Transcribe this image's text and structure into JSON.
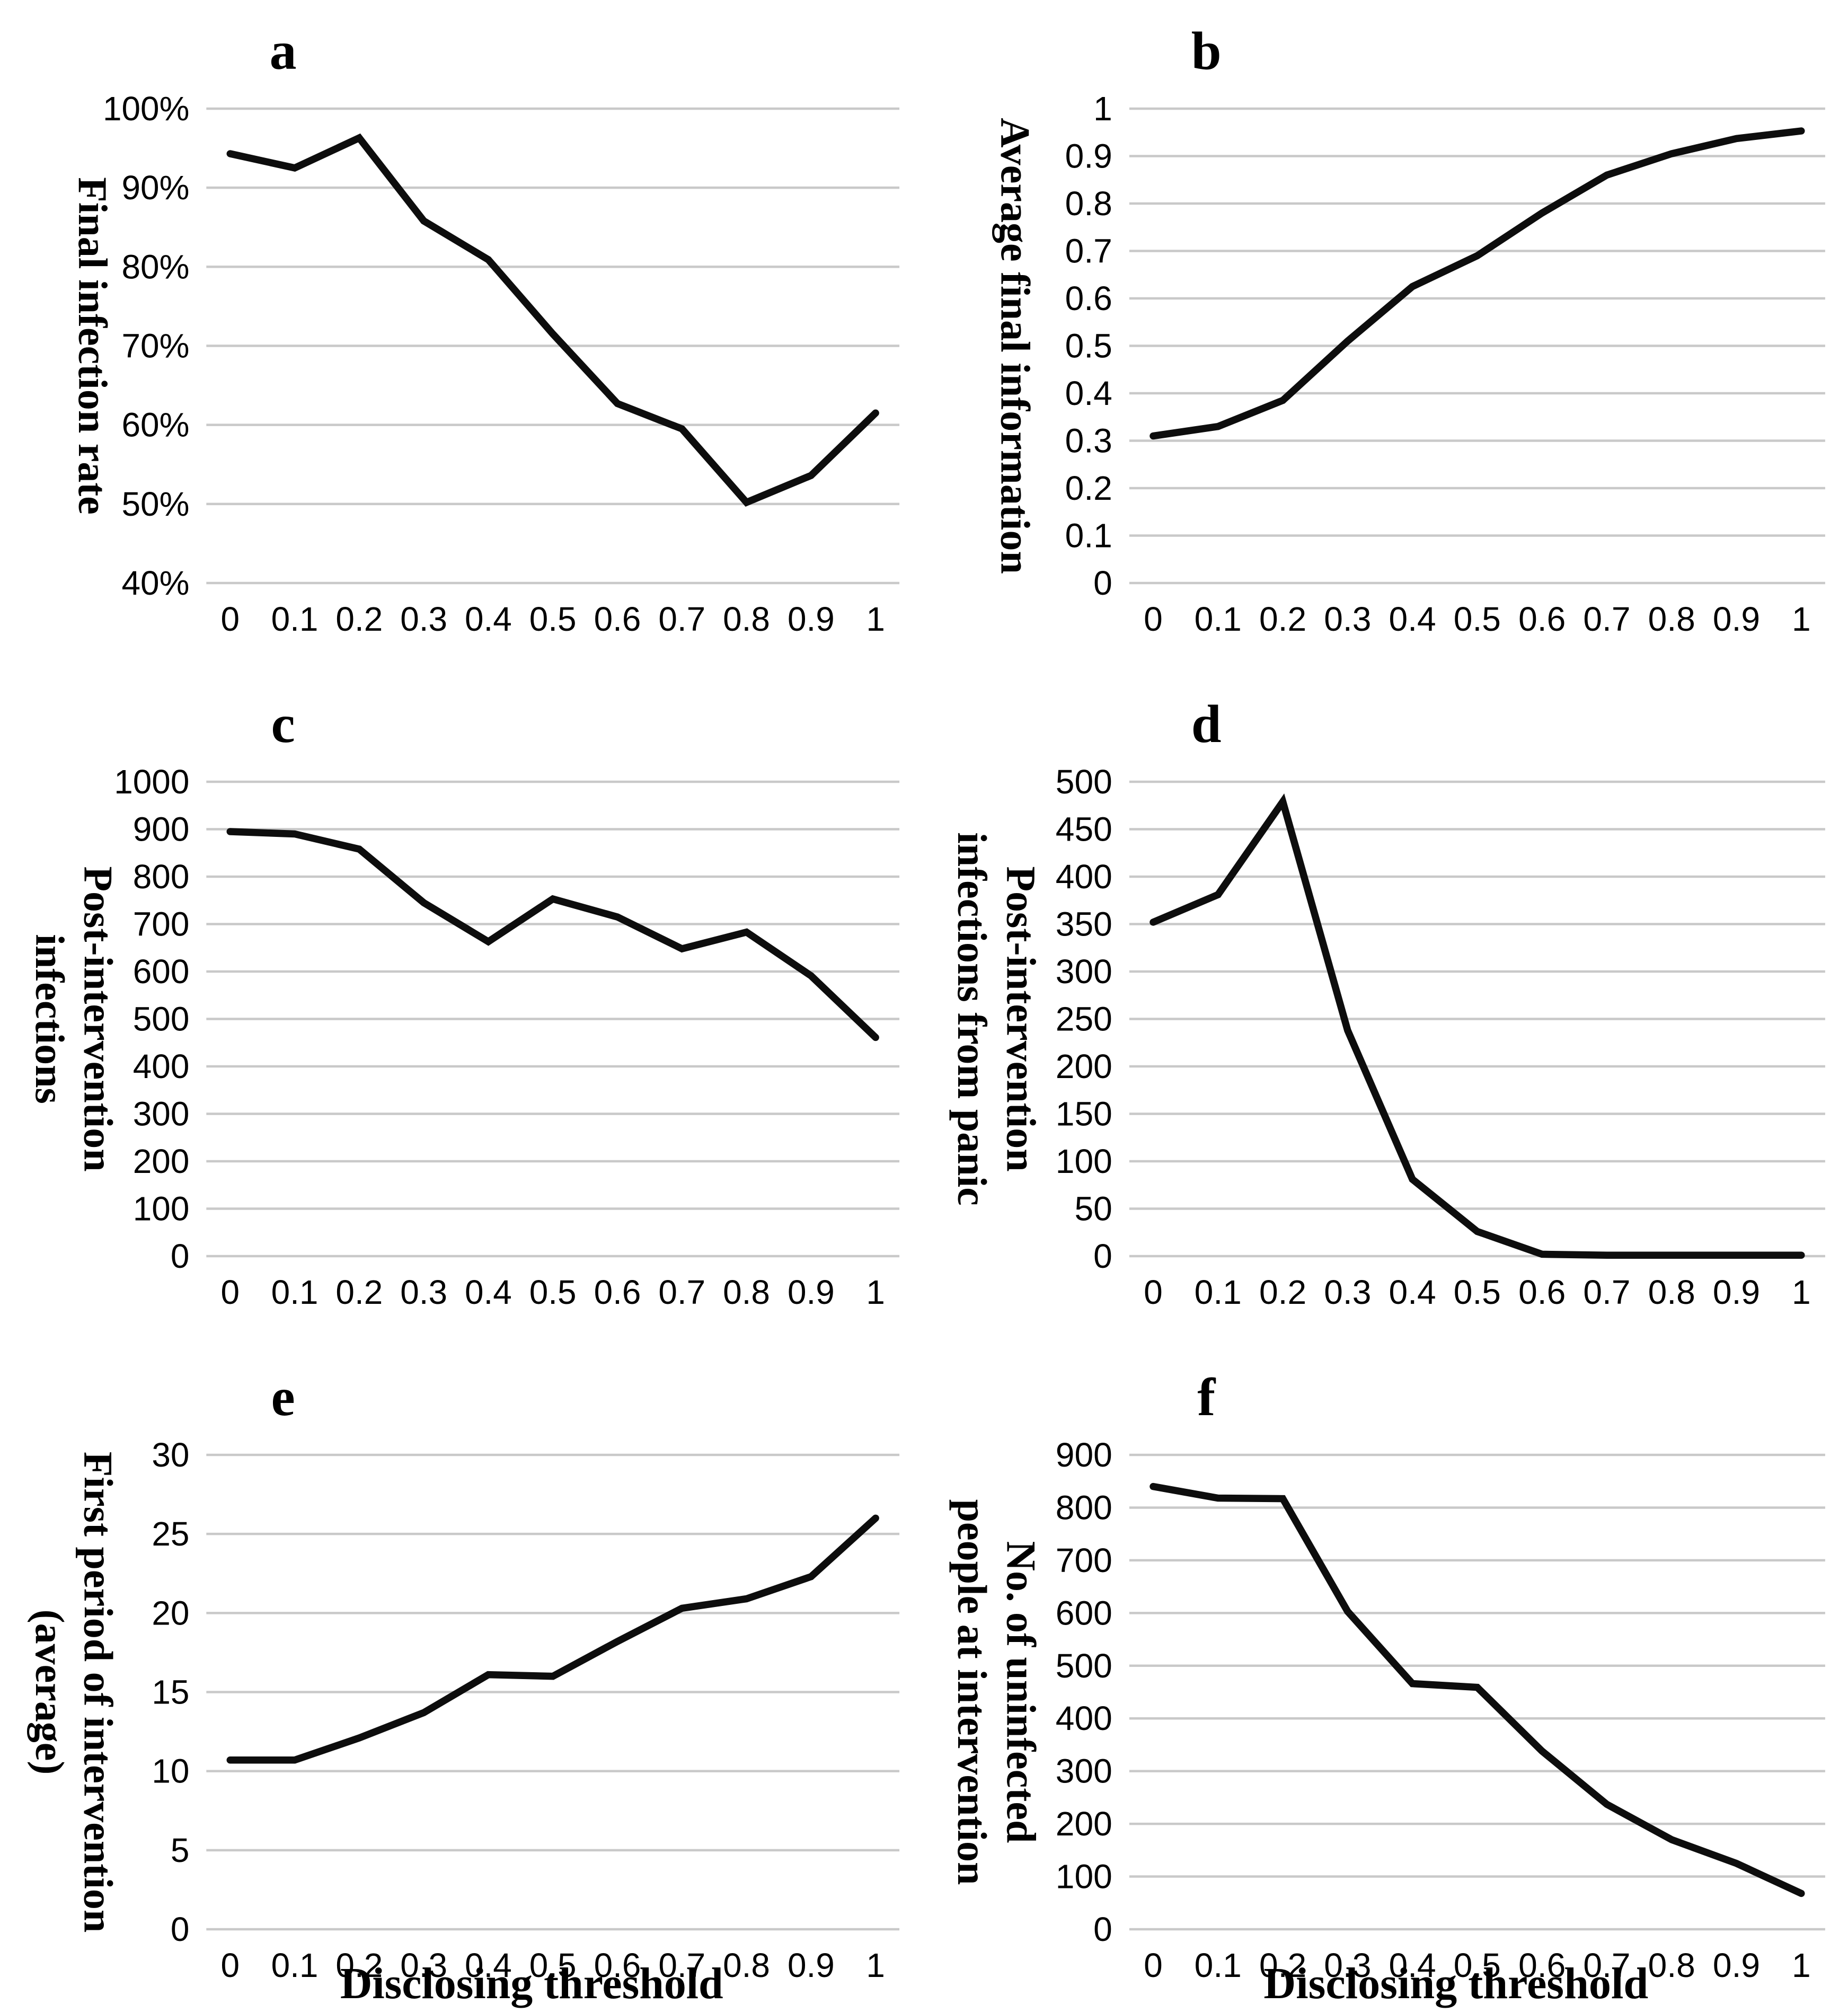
{
  "figure": {
    "x_axis_label": "Disclosing threshold",
    "line_color": "#0d0d0d",
    "gridline_color": "#c9c9c9",
    "background_color": "#ffffff"
  },
  "chart_data": [
    {
      "panel_letter": "a",
      "type": "line",
      "ylabel_lines": [
        "Final infection rate"
      ],
      "y_min": 40,
      "y_max": 100,
      "y_tick_values": [
        100,
        90,
        80,
        70,
        60,
        50,
        40
      ],
      "y_tick_labels": [
        "100%",
        "90%",
        "80%",
        "70%",
        "60%",
        "50%",
        "40%"
      ],
      "x": [
        "0",
        "0.1",
        "0.2",
        "0.3",
        "0.4",
        "0.5",
        "0.6",
        "0.7",
        "0.8",
        "0.9",
        "1"
      ],
      "values": [
        94.3,
        92.5,
        96.3,
        85.8,
        80.9,
        71.5,
        62.7,
        59.5,
        50.2,
        53.6,
        61.5
      ],
      "show_x_title": false
    },
    {
      "panel_letter": "b",
      "type": "line",
      "ylabel_lines": [
        "Average final information"
      ],
      "y_min": 0,
      "y_max": 1,
      "y_tick_values": [
        1,
        0.9,
        0.8,
        0.7,
        0.6,
        0.5,
        0.4,
        0.3,
        0.2,
        0.1,
        0
      ],
      "y_tick_labels": [
        "1",
        "0.9",
        "0.8",
        "0.7",
        "0.6",
        "0.5",
        "0.4",
        "0.3",
        "0.2",
        "0.1",
        "0"
      ],
      "x": [
        "0",
        "0.1",
        "0.2",
        "0.3",
        "0.4",
        "0.5",
        "0.6",
        "0.7",
        "0.8",
        "0.9",
        "1"
      ],
      "values": [
        0.31,
        0.33,
        0.385,
        0.51,
        0.625,
        0.69,
        0.78,
        0.86,
        0.905,
        0.937,
        0.953
      ],
      "show_x_title": false
    },
    {
      "panel_letter": "c",
      "type": "line",
      "ylabel_lines": [
        "Post-intervention",
        "infections"
      ],
      "y_min": 0,
      "y_max": 1000,
      "y_tick_values": [
        1000,
        900,
        800,
        700,
        600,
        500,
        400,
        300,
        200,
        100,
        0
      ],
      "y_tick_labels": [
        "1000",
        "900",
        "800",
        "700",
        "600",
        "500",
        "400",
        "300",
        "200",
        "100",
        "0"
      ],
      "x": [
        "0",
        "0.1",
        "0.2",
        "0.3",
        "0.4",
        "0.5",
        "0.6",
        "0.7",
        "0.8",
        "0.9",
        "1"
      ],
      "values": [
        895,
        890,
        858,
        745,
        663,
        753,
        715,
        648,
        683,
        591,
        461
      ],
      "show_x_title": false
    },
    {
      "panel_letter": "d",
      "type": "line",
      "ylabel_lines": [
        "Post-intervention",
        "infections from panic"
      ],
      "y_min": 0,
      "y_max": 500,
      "y_tick_values": [
        500,
        450,
        400,
        350,
        300,
        250,
        200,
        150,
        100,
        50,
        0
      ],
      "y_tick_labels": [
        "500",
        "450",
        "400",
        "350",
        "300",
        "250",
        "200",
        "150",
        "100",
        "50",
        "0"
      ],
      "x": [
        "0",
        "0.1",
        "0.2",
        "0.3",
        "0.4",
        "0.5",
        "0.6",
        "0.7",
        "0.8",
        "0.9",
        "1"
      ],
      "values": [
        352,
        381,
        479,
        238,
        81,
        26,
        2,
        1,
        1,
        1,
        1
      ],
      "show_x_title": false
    },
    {
      "panel_letter": "e",
      "type": "line",
      "ylabel_lines": [
        "First period of intervention",
        "(average)"
      ],
      "y_min": 0,
      "y_max": 30,
      "y_tick_values": [
        30,
        25,
        20,
        15,
        10,
        5,
        0
      ],
      "y_tick_labels": [
        "30",
        "25",
        "20",
        "15",
        "10",
        "5",
        "0"
      ],
      "x": [
        "0",
        "0.1",
        "0.2",
        "0.3",
        "0.4",
        "0.5",
        "0.6",
        "0.7",
        "0.8",
        "0.9",
        "1"
      ],
      "values": [
        10.7,
        10.7,
        12.1,
        13.7,
        16.1,
        16.0,
        18.2,
        20.3,
        20.9,
        22.3,
        26.0
      ],
      "show_x_title": true
    },
    {
      "panel_letter": "f",
      "type": "line",
      "ylabel_lines": [
        "No. of uninfected",
        "people at intervention"
      ],
      "y_min": 0,
      "y_max": 900,
      "y_tick_values": [
        900,
        800,
        700,
        600,
        500,
        400,
        300,
        200,
        100,
        0
      ],
      "y_tick_labels": [
        "900",
        "800",
        "700",
        "600",
        "500",
        "400",
        "300",
        "200",
        "100",
        "0"
      ],
      "x": [
        "0",
        "0.1",
        "0.2",
        "0.3",
        "0.4",
        "0.5",
        "0.6",
        "0.7",
        "0.8",
        "0.9",
        "1"
      ],
      "values": [
        840,
        818,
        817,
        603,
        466,
        459,
        338,
        237,
        170,
        125,
        68
      ],
      "show_x_title": true
    }
  ]
}
